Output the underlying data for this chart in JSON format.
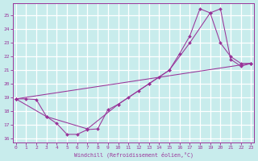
{
  "bg_color": "#c8ecec",
  "line_color": "#993399",
  "grid_color": "#ffffff",
  "xlim": [
    -0.3,
    23.3
  ],
  "ylim": [
    15.7,
    25.9
  ],
  "yticks": [
    16,
    17,
    18,
    19,
    20,
    21,
    22,
    23,
    24,
    25
  ],
  "xticks": [
    0,
    1,
    2,
    3,
    4,
    5,
    6,
    7,
    8,
    9,
    10,
    11,
    12,
    13,
    14,
    15,
    16,
    17,
    18,
    19,
    20,
    21,
    22,
    23
  ],
  "xlabel": "Windchill (Refroidissement éolien,°C)",
  "series": [
    {
      "x": [
        0,
        1,
        2,
        3,
        4,
        5,
        6,
        7,
        8,
        9,
        10,
        11,
        12,
        13,
        14,
        15,
        16,
        17,
        18,
        19,
        20,
        21,
        22,
        23
      ],
      "y": [
        18.9,
        18.9,
        18.85,
        17.6,
        17.1,
        16.3,
        16.3,
        16.65,
        16.7,
        18.1,
        18.5,
        19.0,
        19.5,
        20.0,
        20.5,
        21.0,
        22.2,
        23.5,
        25.5,
        25.2,
        25.5,
        21.8,
        21.3,
        21.5
      ]
    },
    {
      "x": [
        0,
        3,
        7,
        10,
        13,
        15,
        17,
        19,
        20,
        21,
        22,
        23
      ],
      "y": [
        18.9,
        17.6,
        16.7,
        18.5,
        20.0,
        21.0,
        23.0,
        25.2,
        23.0,
        22.0,
        21.5,
        21.5
      ]
    },
    {
      "x": [
        0,
        23
      ],
      "y": [
        18.9,
        21.5
      ]
    }
  ]
}
